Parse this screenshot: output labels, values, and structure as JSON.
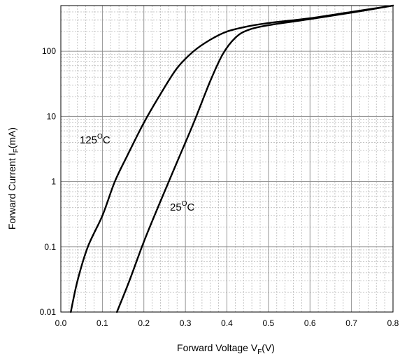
{
  "chart_data": {
    "type": "line",
    "title": "",
    "xlabel": {
      "main": "Forward Voltage V",
      "sub": "F",
      "tail": "(V)"
    },
    "ylabel": {
      "main": "Forward Current I",
      "sub": "F",
      "tail": "(mA)"
    },
    "xlim": [
      0.0,
      0.8
    ],
    "ylim": [
      0.01,
      500
    ],
    "y_scale": "log",
    "grid": true,
    "x_ticks": [
      "0.0",
      "0.1",
      "0.2",
      "0.3",
      "0.4",
      "0.5",
      "0.6",
      "0.7",
      "0.8"
    ],
    "y_ticks": [
      {
        "value": 0.01,
        "label": "0.01"
      },
      {
        "value": 0.1,
        "label": "0.1"
      },
      {
        "value": 1,
        "label": "1"
      },
      {
        "value": 10,
        "label": "10"
      },
      {
        "value": 100,
        "label": "100"
      }
    ],
    "series": [
      {
        "label": {
          "base": "125",
          "sup": "O",
          "unit": "C"
        },
        "points": [
          [
            0.024,
            0.01
          ],
          [
            0.04,
            0.03
          ],
          [
            0.065,
            0.1
          ],
          [
            0.1,
            0.3
          ],
          [
            0.13,
            1
          ],
          [
            0.16,
            2.5
          ],
          [
            0.2,
            8
          ],
          [
            0.24,
            22
          ],
          [
            0.28,
            55
          ],
          [
            0.32,
            100
          ],
          [
            0.36,
            150
          ],
          [
            0.4,
            200
          ],
          [
            0.45,
            240
          ],
          [
            0.5,
            270
          ],
          [
            0.6,
            320
          ],
          [
            0.7,
            400
          ],
          [
            0.8,
            500
          ]
        ]
      },
      {
        "label": {
          "base": "25",
          "sup": "O",
          "unit": "C"
        },
        "points": [
          [
            0.135,
            0.01
          ],
          [
            0.165,
            0.03
          ],
          [
            0.2,
            0.12
          ],
          [
            0.24,
            0.5
          ],
          [
            0.28,
            2
          ],
          [
            0.32,
            8
          ],
          [
            0.36,
            35
          ],
          [
            0.39,
            90
          ],
          [
            0.42,
            160
          ],
          [
            0.45,
            210
          ],
          [
            0.5,
            250
          ],
          [
            0.6,
            310
          ],
          [
            0.7,
            390
          ],
          [
            0.8,
            500
          ]
        ]
      }
    ]
  }
}
